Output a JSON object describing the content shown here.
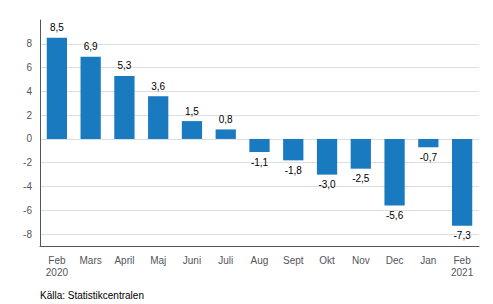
{
  "chart_data": {
    "type": "bar",
    "categories": [
      "Feb\n2020",
      "Mars",
      "April",
      "Maj",
      "Juni",
      "Juli",
      "Aug",
      "Sept",
      "Okt",
      "Nov",
      "Dec",
      "Jan",
      "Feb\n2021"
    ],
    "values": [
      8.5,
      6.9,
      5.3,
      3.6,
      1.5,
      0.8,
      -1.1,
      -1.8,
      -3.0,
      -2.5,
      -5.6,
      -0.7,
      -7.3
    ],
    "value_labels": [
      "8,5",
      "6,9",
      "5,3",
      "3,6",
      "1,5",
      "0,8",
      "-1,1",
      "-1,8",
      "-3,0",
      "-2,5",
      "-5,6",
      "-0,7",
      "-7,3"
    ],
    "data_labels": true,
    "color": "#1a7abf",
    "ylim": [
      -9,
      10
    ],
    "yticks": [
      -8,
      -6,
      -4,
      -2,
      0,
      2,
      4,
      6,
      8
    ],
    "grid": true,
    "annotations": [
      "Källa: Statistikcentralen"
    ]
  }
}
